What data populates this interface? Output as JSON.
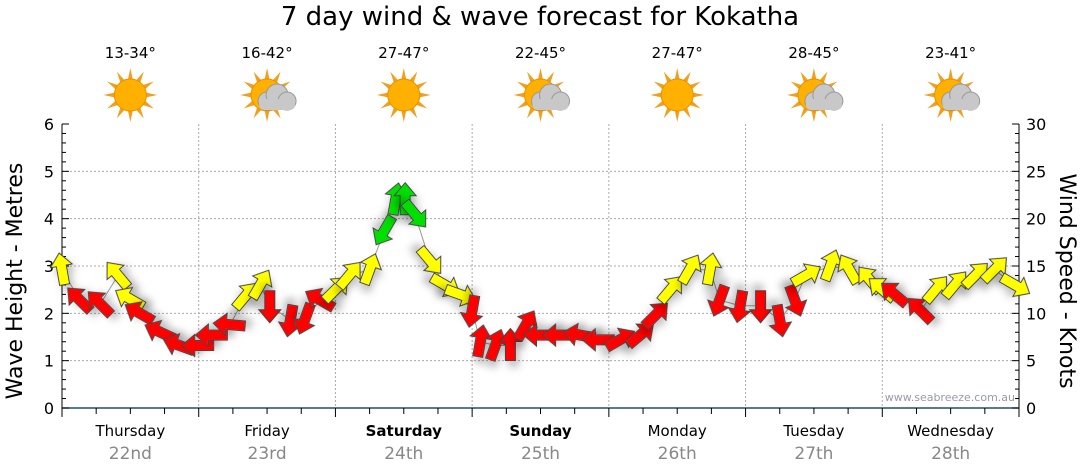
{
  "title": "7 day wind & wave forecast for Kokatha",
  "watermark": "www.seabreeze.com.au",
  "days": [
    {
      "day": "Thursday",
      "date": "22nd",
      "temp": "13-34°",
      "icon": "sun-icon",
      "bold": false
    },
    {
      "day": "Friday",
      "date": "23rd",
      "temp": "16-42°",
      "icon": "partly-cloudy-icon",
      "bold": false
    },
    {
      "day": "Saturday",
      "date": "24th",
      "temp": "27-47°",
      "icon": "sun-icon",
      "bold": true
    },
    {
      "day": "Sunday",
      "date": "25th",
      "temp": "22-45°",
      "icon": "partly-cloudy-icon",
      "bold": true
    },
    {
      "day": "Monday",
      "date": "26th",
      "temp": "27-47°",
      "icon": "sun-icon",
      "bold": false
    },
    {
      "day": "Tuesday",
      "date": "27th",
      "temp": "28-45°",
      "icon": "partly-cloudy-icon",
      "bold": false
    },
    {
      "day": "Wednesday",
      "date": "28th",
      "temp": "23-41°",
      "icon": "partly-cloudy-icon",
      "bold": false
    }
  ],
  "colors": {
    "r": "#ff0000",
    "y": "#ffff00",
    "g": "#00e000",
    "stroke": "#444444"
  },
  "chart_data": {
    "type": "scatter",
    "title": "7 day wind & wave forecast for Kokatha",
    "ylabel_left": "Wave Height - Metres",
    "ylabel_right": "Wind Speed - Knots",
    "ylim_left": [
      0,
      6
    ],
    "ylim_right": [
      0,
      30
    ],
    "yticks_left": [
      "0",
      "1",
      "2",
      "3",
      "4",
      "5",
      "6"
    ],
    "yticks_right": [
      "0",
      "5",
      "10",
      "15",
      "20",
      "25",
      "30"
    ],
    "xlim_days": [
      0,
      7
    ],
    "grid": true,
    "wind_fields": [
      "t_days",
      "knots",
      "direction_deg",
      "color"
    ],
    "wind": [
      [
        0.0,
        14.6,
        350,
        "y"
      ],
      [
        0.13,
        11.4,
        315,
        "r"
      ],
      [
        0.28,
        11,
        315,
        "r"
      ],
      [
        0.41,
        14,
        320,
        "y"
      ],
      [
        0.5,
        11.5,
        300,
        "y"
      ],
      [
        0.57,
        10,
        300,
        "r"
      ],
      [
        0.72,
        8,
        295,
        "r"
      ],
      [
        0.86,
        6.6,
        290,
        "r"
      ],
      [
        1.0,
        6.6,
        270,
        "r"
      ],
      [
        1.1,
        7.7,
        270,
        "r"
      ],
      [
        1.23,
        8.8,
        275,
        "r"
      ],
      [
        1.34,
        11.8,
        40,
        "y"
      ],
      [
        1.45,
        13,
        30,
        "y"
      ],
      [
        1.52,
        10.8,
        180,
        "r"
      ],
      [
        1.67,
        9.3,
        190,
        "r"
      ],
      [
        1.78,
        9.5,
        200,
        "r"
      ],
      [
        1.89,
        11.4,
        300,
        "r"
      ],
      [
        2.0,
        12.5,
        45,
        "y"
      ],
      [
        2.1,
        14,
        40,
        "y"
      ],
      [
        2.25,
        14.6,
        20,
        "y"
      ],
      [
        2.36,
        18.8,
        210,
        "g"
      ],
      [
        2.44,
        22,
        10,
        "g"
      ],
      [
        2.51,
        22,
        0,
        "g"
      ],
      [
        2.58,
        20.5,
        140,
        "g"
      ],
      [
        2.69,
        15.6,
        140,
        "y"
      ],
      [
        2.8,
        13,
        120,
        "y"
      ],
      [
        2.91,
        12,
        110,
        "y"
      ],
      [
        3.0,
        10.3,
        190,
        "r"
      ],
      [
        3.06,
        7,
        10,
        "r"
      ],
      [
        3.17,
        6.6,
        20,
        "r"
      ],
      [
        3.28,
        6.6,
        0,
        "r"
      ],
      [
        3.39,
        8.7,
        30,
        "r"
      ],
      [
        3.5,
        7.7,
        270,
        "r"
      ],
      [
        3.64,
        7.7,
        270,
        "r"
      ],
      [
        3.79,
        7.7,
        280,
        "r"
      ],
      [
        3.93,
        7.2,
        270,
        "r"
      ],
      [
        4.08,
        7.2,
        60,
        "r"
      ],
      [
        4.23,
        7.7,
        50,
        "r"
      ],
      [
        4.34,
        9.8,
        45,
        "r"
      ],
      [
        4.45,
        12.5,
        40,
        "y"
      ],
      [
        4.59,
        14.6,
        30,
        "y"
      ],
      [
        4.74,
        14.6,
        10,
        "y"
      ],
      [
        4.81,
        11.4,
        200,
        "r"
      ],
      [
        4.96,
        10.8,
        190,
        "r"
      ],
      [
        5.11,
        10.8,
        180,
        "r"
      ],
      [
        5.25,
        9.3,
        170,
        "r"
      ],
      [
        5.36,
        11.4,
        160,
        "r"
      ],
      [
        5.44,
        14,
        60,
        "y"
      ],
      [
        5.62,
        15,
        20,
        "y"
      ],
      [
        5.76,
        14.6,
        330,
        "y"
      ],
      [
        5.91,
        13.5,
        320,
        "y"
      ],
      [
        6.0,
        12.5,
        310,
        "y"
      ],
      [
        6.09,
        12,
        310,
        "r"
      ],
      [
        6.28,
        10.3,
        315,
        "r"
      ],
      [
        6.39,
        12.5,
        40,
        "y"
      ],
      [
        6.53,
        13,
        40,
        "y"
      ],
      [
        6.68,
        14,
        45,
        "y"
      ],
      [
        6.82,
        14.6,
        45,
        "y"
      ],
      [
        6.97,
        13,
        120,
        "y"
      ]
    ]
  }
}
